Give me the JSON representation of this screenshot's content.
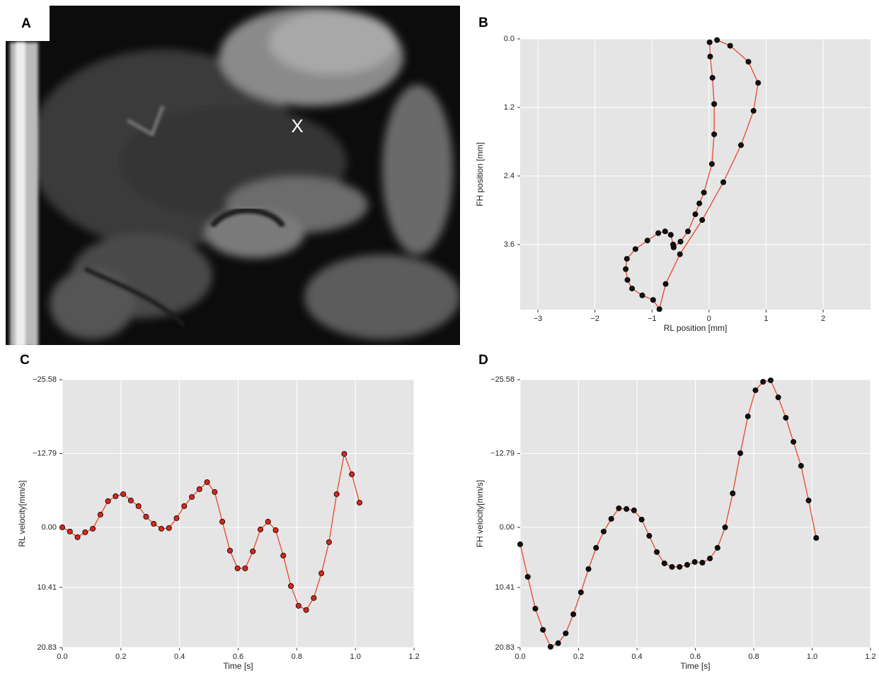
{
  "image_panel": {
    "label": "A",
    "marker": "X"
  },
  "chart_data": [
    {
      "type": "line",
      "panel_label": "B",
      "x_label": "RL position [mm]",
      "y_label": "FH position [mm]",
      "x": [
        0.01,
        0.02,
        0.06,
        0.09,
        0.09,
        0.05,
        -0.09,
        -0.17,
        -0.24,
        -0.37,
        -0.5,
        -0.62,
        -0.63,
        -0.67,
        -0.77,
        -0.89,
        -1.08,
        -1.29,
        -1.44,
        -1.46,
        -1.43,
        -1.35,
        -1.17,
        -0.98,
        -0.87,
        -0.76,
        -0.51,
        -0.12,
        0.25,
        0.56,
        0.78,
        0.86,
        0.69,
        0.37,
        0.14
      ],
      "series": [
        {
          "color": "#e8452c",
          "marker_color": "#111111",
          "values": [
            0.06,
            0.31,
            0.68,
            1.14,
            1.67,
            2.19,
            2.69,
            2.88,
            3.07,
            3.37,
            3.55,
            3.65,
            3.6,
            3.43,
            3.37,
            3.4,
            3.53,
            3.68,
            3.85,
            4.03,
            4.22,
            4.37,
            4.49,
            4.57,
            4.73,
            4.29,
            3.77,
            3.17,
            2.51,
            1.86,
            1.26,
            0.77,
            0.4,
            0.12,
            0.02
          ]
        }
      ],
      "xlim": [
        -3.31,
        2.83
      ],
      "ylim": [
        0,
        4.74
      ],
      "y_inverted": true,
      "grid": true,
      "xticks": [
        {
          "value": -3,
          "label": "−3"
        },
        {
          "value": -2,
          "label": "−2"
        },
        {
          "value": -1,
          "label": "−1"
        },
        0,
        1,
        2
      ],
      "yticks": [
        {
          "value": 0,
          "label": "0.0"
        },
        1.2,
        2.4,
        3.6
      ]
    },
    {
      "type": "line",
      "panel_label": "C",
      "x_label": "Time [s]",
      "y_label": "RL velocity[mm/s]",
      "x": [
        0,
        0.026,
        0.052,
        0.078,
        0.104,
        0.13,
        0.156,
        0.182,
        0.208,
        0.234,
        0.26,
        0.286,
        0.312,
        0.338,
        0.364,
        0.39,
        0.416,
        0.442,
        0.468,
        0.494,
        0.52,
        0.546,
        0.572,
        0.598,
        0.624,
        0.65,
        0.676,
        0.702,
        0.728,
        0.754,
        0.78,
        0.806,
        0.832,
        0.858,
        0.884,
        0.91,
        0.936,
        0.962,
        0.988,
        1.014
      ],
      "series": [
        {
          "color": "#e8452c",
          "marker_color": "#d8261c",
          "values": [
            0,
            0.73,
            1.71,
            0.86,
            0.24,
            -2.2,
            -4.53,
            -5.39,
            -5.75,
            -4.65,
            -3.67,
            -1.84,
            -0.61,
            0.24,
            0.12,
            -1.59,
            -3.67,
            -5.26,
            -6.61,
            -7.83,
            -6.12,
            -0.98,
            4.04,
            7.1,
            7.1,
            4.16,
            0.37,
            -0.98,
            0.49,
            4.9,
            10.16,
            13.59,
            14.32,
            12.24,
            7.96,
            2.57,
            -5.75,
            -12.73,
            -9.18,
            -4.28
          ]
        }
      ],
      "xlim": [
        0,
        1.2
      ],
      "ylim": [
        -25.58,
        20.83
      ],
      "y_inverted": true,
      "grid": true,
      "xticks": [
        {
          "value": 0,
          "label": "0.0"
        },
        0.2,
        0.4,
        0.6,
        0.8,
        {
          "value": 1,
          "label": "1.0"
        },
        1.2
      ],
      "yticks": [
        {
          "value": -25.58,
          "label": "−25.58"
        },
        {
          "value": -12.79,
          "label": "−12.79"
        },
        {
          "value": 0,
          "label": "0.00"
        },
        10.41,
        20.83
      ]
    },
    {
      "type": "line",
      "panel_label": "D",
      "x_label": "Time [s]",
      "y_label": "FH velocity[mm/s]",
      "x": [
        0,
        0.026,
        0.052,
        0.078,
        0.104,
        0.13,
        0.156,
        0.182,
        0.208,
        0.234,
        0.26,
        0.286,
        0.312,
        0.338,
        0.364,
        0.39,
        0.416,
        0.442,
        0.468,
        0.494,
        0.52,
        0.546,
        0.572,
        0.598,
        0.624,
        0.65,
        0.676,
        0.702,
        0.728,
        0.754,
        0.78,
        0.806,
        0.832,
        0.858,
        0.884,
        0.91,
        0.936,
        0.962,
        0.988,
        1.014
      ],
      "series": [
        {
          "color": "#e8452c",
          "marker_color": "#111111",
          "values": [
            2.94,
            8.57,
            14.08,
            17.75,
            20.69,
            20.07,
            18.36,
            15.06,
            11.26,
            7.22,
            3.55,
            0.73,
            -1.47,
            -3.3,
            -3.18,
            -2.94,
            -1.35,
            1.47,
            4.28,
            6.24,
            6.85,
            6.85,
            6.49,
            6,
            6.12,
            5.39,
            3.55,
            0,
            -5.88,
            -12.85,
            -19.22,
            -23.75,
            -25.21,
            -25.46,
            -22.52,
            -18.97,
            -14.81,
            -10.65,
            -4.65,
            1.84
          ]
        }
      ],
      "xlim": [
        0,
        1.2
      ],
      "ylim": [
        -25.58,
        20.83
      ],
      "y_inverted": true,
      "grid": true,
      "xticks": [
        {
          "value": 0,
          "label": "0.0"
        },
        0.2,
        0.4,
        0.6,
        0.8,
        {
          "value": 1,
          "label": "1.0"
        },
        1.2
      ],
      "yticks": [
        {
          "value": -25.58,
          "label": "−25.58"
        },
        {
          "value": -12.79,
          "label": "−12.79"
        },
        {
          "value": 0,
          "label": "0.00"
        },
        10.41,
        20.83
      ]
    }
  ]
}
